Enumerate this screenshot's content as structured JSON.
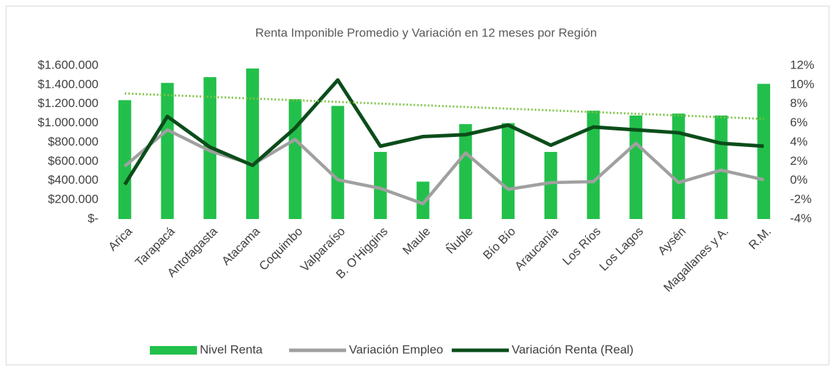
{
  "chart_data": {
    "type": "bar",
    "title": "Renta Imponible Promedio y Variación en 12 meses por Región",
    "categories": [
      "Arica",
      "Tarapacá",
      "Antofagasta",
      "Atacama",
      "Coquimbo",
      "Valparaíso",
      "B. O'Higgins",
      "Maule",
      "Ñuble",
      "Bío Bío",
      "Araucanía",
      "Los Ríos",
      "Los Lagos",
      "Aysén",
      "Magallanes y A.",
      "R.M."
    ],
    "series": [
      {
        "name": "Nivel Renta",
        "type": "bar",
        "color": "#22c04b",
        "values": [
          1240000,
          1420000,
          1480000,
          1570000,
          1250000,
          1180000,
          700000,
          390000,
          990000,
          1000000,
          700000,
          1130000,
          1080000,
          1100000,
          1080000,
          1410000
        ]
      },
      {
        "name": "Variación Empleo",
        "type": "line",
        "axis": "y2",
        "color": "#a0a0a0",
        "values": [
          1.5,
          5.3,
          3.1,
          1.7,
          4.3,
          0.1,
          -0.8,
          -2.4,
          2.9,
          -0.9,
          -0.2,
          -0.1,
          3.9,
          -0.2,
          1.1,
          0.1
        ]
      },
      {
        "name": "Variación Renta (Real)",
        "type": "line",
        "axis": "y2",
        "color": "#0b4d1a",
        "values": [
          -0.4,
          6.7,
          3.5,
          1.6,
          5.5,
          10.5,
          3.6,
          4.6,
          4.8,
          5.8,
          3.7,
          5.6,
          5.3,
          5.0,
          3.9,
          3.6
        ]
      }
    ],
    "trendline": {
      "color": "#7cc242",
      "values": [
        1310000,
        1045000
      ]
    },
    "ylim": [
      0,
      1600000
    ],
    "yticks": [
      {
        "value": 0,
        "label": "$-"
      },
      {
        "value": 200000,
        "label": "$200.000"
      },
      {
        "value": 400000,
        "label": "$400.000"
      },
      {
        "value": 600000,
        "label": "$600.000"
      },
      {
        "value": 800000,
        "label": "$800.000"
      },
      {
        "value": 1000000,
        "label": "$1.000.000"
      },
      {
        "value": 1200000,
        "label": "$1.200.000"
      },
      {
        "value": 1400000,
        "label": "$1.400.000"
      },
      {
        "value": 1600000,
        "label": "$1.600.000"
      }
    ],
    "y2lim": [
      -4,
      12
    ],
    "y2ticks": [
      {
        "value": -4,
        "label": "-4%"
      },
      {
        "value": -2,
        "label": "-2%"
      },
      {
        "value": 0,
        "label": "0%"
      },
      {
        "value": 2,
        "label": "2%"
      },
      {
        "value": 4,
        "label": "4%"
      },
      {
        "value": 6,
        "label": "6%"
      },
      {
        "value": 8,
        "label": "8%"
      },
      {
        "value": 10,
        "label": "10%"
      },
      {
        "value": 12,
        "label": "12%"
      }
    ],
    "legend": "bottom",
    "grid": false
  }
}
